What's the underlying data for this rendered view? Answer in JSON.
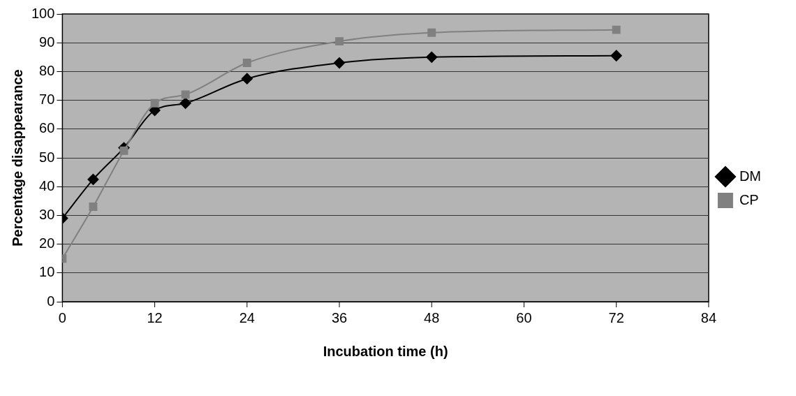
{
  "chart_data": {
    "type": "line",
    "xlabel": "Incubation time (h)",
    "ylabel": "Percentage disappearance",
    "x": [
      0,
      4,
      8,
      12,
      16,
      24,
      36,
      48,
      72
    ],
    "series": [
      {
        "name": "DM",
        "color": "#000000",
        "marker": "diamond",
        "values": [
          29,
          42.5,
          53.5,
          66.5,
          69,
          77.5,
          83,
          85,
          85.5
        ]
      },
      {
        "name": "CP",
        "color": "#808080",
        "marker": "square",
        "values": [
          15,
          33,
          52.5,
          69,
          72,
          83,
          90.5,
          93.5,
          94.5
        ]
      }
    ],
    "xlim": [
      0,
      84
    ],
    "xticks": [
      0,
      12,
      24,
      36,
      48,
      60,
      72,
      84
    ],
    "ylim": [
      0,
      100
    ],
    "yticks": [
      0,
      10,
      20,
      30,
      40,
      50,
      60,
      70,
      80,
      90,
      100
    ],
    "grid": "y",
    "legend": "right"
  }
}
